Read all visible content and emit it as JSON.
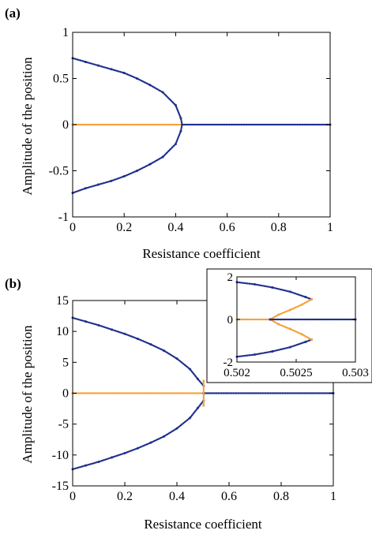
{
  "panels": [
    {
      "label": "(a)"
    },
    {
      "label": "(b)"
    }
  ],
  "chart_data": [
    {
      "type": "scatter",
      "panel": "(a)",
      "xlabel": "Resistance coefficient",
      "ylabel": "Amplitude of the position",
      "xlim": [
        0,
        1
      ],
      "ylim": [
        -1,
        1
      ],
      "xticks": [
        0,
        0.2,
        0.4,
        0.6,
        0.8,
        1
      ],
      "xtick_labels": [
        "0",
        "0.2",
        "0.4",
        "0.6",
        "0.8",
        "1"
      ],
      "yticks": [
        -1,
        -0.5,
        0,
        0.5,
        1
      ],
      "ytick_labels": [
        "-1",
        "-0.5",
        "0",
        "0.5",
        "1"
      ],
      "grid": false,
      "series": [
        {
          "role": "upper-branch",
          "color": "#1f2f8c",
          "points": [
            [
              0.0,
              0.72
            ],
            [
              0.05,
              0.68
            ],
            [
              0.1,
              0.64
            ],
            [
              0.15,
              0.6
            ],
            [
              0.2,
              0.56
            ],
            [
              0.25,
              0.5
            ],
            [
              0.3,
              0.43
            ],
            [
              0.35,
              0.35
            ],
            [
              0.4,
              0.21
            ],
            [
              0.42,
              0.07
            ],
            [
              0.425,
              0.0
            ]
          ]
        },
        {
          "role": "lower-branch",
          "color": "#1f2f8c",
          "points": [
            [
              0.0,
              -0.74
            ],
            [
              0.05,
              -0.69
            ],
            [
              0.1,
              -0.65
            ],
            [
              0.15,
              -0.61
            ],
            [
              0.2,
              -0.56
            ],
            [
              0.25,
              -0.5
            ],
            [
              0.3,
              -0.43
            ],
            [
              0.35,
              -0.35
            ],
            [
              0.4,
              -0.21
            ],
            [
              0.42,
              -0.07
            ],
            [
              0.425,
              0.0
            ]
          ]
        },
        {
          "role": "zero-unstable",
          "color": "#f5a23a",
          "points": [
            [
              0.0,
              0.0
            ],
            [
              0.425,
              0.0
            ]
          ]
        },
        {
          "role": "zero-stable",
          "color": "#1f2f8c",
          "points": [
            [
              0.425,
              0.0
            ],
            [
              1.0,
              0.0
            ]
          ]
        }
      ]
    },
    {
      "type": "scatter",
      "panel": "(b)",
      "xlabel": "Resistance coefficient",
      "ylabel": "Amplitude of the position",
      "xlim": [
        0,
        1
      ],
      "ylim": [
        -15,
        15
      ],
      "xticks": [
        0,
        0.2,
        0.4,
        0.6,
        0.8,
        1
      ],
      "xtick_labels": [
        "0",
        "0.2",
        "0.4",
        "0.6",
        "0.8",
        "1"
      ],
      "yticks": [
        -15,
        -10,
        -5,
        0,
        5,
        10,
        15
      ],
      "ytick_labels": [
        "-15",
        "-10",
        "-5",
        "0",
        "5",
        "10",
        "15"
      ],
      "grid": false,
      "series": [
        {
          "role": "upper-branch",
          "color": "#1f2f8c",
          "points": [
            [
              0.0,
              12.2
            ],
            [
              0.05,
              11.6
            ],
            [
              0.1,
              11.0
            ],
            [
              0.15,
              10.3
            ],
            [
              0.2,
              9.6
            ],
            [
              0.25,
              8.8
            ],
            [
              0.3,
              7.9
            ],
            [
              0.35,
              6.9
            ],
            [
              0.4,
              5.6
            ],
            [
              0.45,
              3.9
            ],
            [
              0.48,
              2.3
            ],
            [
              0.5025,
              1.2
            ]
          ]
        },
        {
          "role": "lower-branch",
          "color": "#1f2f8c",
          "points": [
            [
              0.0,
              -12.3
            ],
            [
              0.05,
              -11.7
            ],
            [
              0.1,
              -11.1
            ],
            [
              0.15,
              -10.4
            ],
            [
              0.2,
              -9.7
            ],
            [
              0.25,
              -8.9
            ],
            [
              0.3,
              -8.0
            ],
            [
              0.35,
              -7.0
            ],
            [
              0.4,
              -5.7
            ],
            [
              0.45,
              -4.0
            ],
            [
              0.48,
              -2.4
            ],
            [
              0.5025,
              -1.2
            ]
          ]
        },
        {
          "role": "zero-unstable",
          "color": "#f5a23a",
          "points": [
            [
              0.0,
              0.0
            ],
            [
              0.5025,
              0.0
            ]
          ]
        },
        {
          "role": "zero-stable",
          "color": "#1f2f8c",
          "points": [
            [
              0.5025,
              0.0
            ],
            [
              1.0,
              0.0
            ]
          ]
        },
        {
          "role": "transition-segment",
          "color": "#f5a23a",
          "points": [
            [
              0.5025,
              -2.0
            ],
            [
              0.5025,
              2.0
            ]
          ]
        }
      ],
      "inset": {
        "xlim": [
          0.502,
          0.503
        ],
        "ylim": [
          -2,
          2
        ],
        "xticks": [
          0.502,
          0.5025,
          0.503
        ],
        "xtick_labels": [
          "0.502",
          "0.5025",
          "0.503"
        ],
        "yticks": [
          -2,
          0,
          2
        ],
        "ytick_labels": [
          "-2",
          "0",
          "2"
        ],
        "series": [
          {
            "role": "upper-stable",
            "color": "#1f2f8c",
            "points": [
              [
                0.502,
                1.75
              ],
              [
                0.50215,
                1.65
              ],
              [
                0.5023,
                1.5
              ],
              [
                0.50245,
                1.3
              ],
              [
                0.50258,
                1.05
              ],
              [
                0.50263,
                0.95
              ]
            ]
          },
          {
            "role": "lower-stable",
            "color": "#1f2f8c",
            "points": [
              [
                0.502,
                -1.75
              ],
              [
                0.50215,
                -1.65
              ],
              [
                0.5023,
                -1.5
              ],
              [
                0.50245,
                -1.3
              ],
              [
                0.50258,
                -1.05
              ],
              [
                0.50263,
                -0.95
              ]
            ]
          },
          {
            "role": "upper-unstable",
            "color": "#f5a23a",
            "points": [
              [
                0.50263,
                0.95
              ],
              [
                0.50255,
                0.7
              ],
              [
                0.50245,
                0.45
              ],
              [
                0.50235,
                0.22
              ],
              [
                0.50228,
                0.0
              ]
            ]
          },
          {
            "role": "lower-unstable",
            "color": "#f5a23a",
            "points": [
              [
                0.50263,
                -0.95
              ],
              [
                0.50255,
                -0.7
              ],
              [
                0.50245,
                -0.45
              ],
              [
                0.50235,
                -0.22
              ],
              [
                0.50228,
                0.0
              ]
            ]
          },
          {
            "role": "zero-unstable",
            "color": "#f5a23a",
            "points": [
              [
                0.502,
                0.0
              ],
              [
                0.50228,
                0.0
              ]
            ]
          },
          {
            "role": "zero-stable",
            "color": "#1f2f8c",
            "points": [
              [
                0.50228,
                0.0
              ],
              [
                0.503,
                0.0
              ]
            ]
          }
        ]
      }
    }
  ]
}
